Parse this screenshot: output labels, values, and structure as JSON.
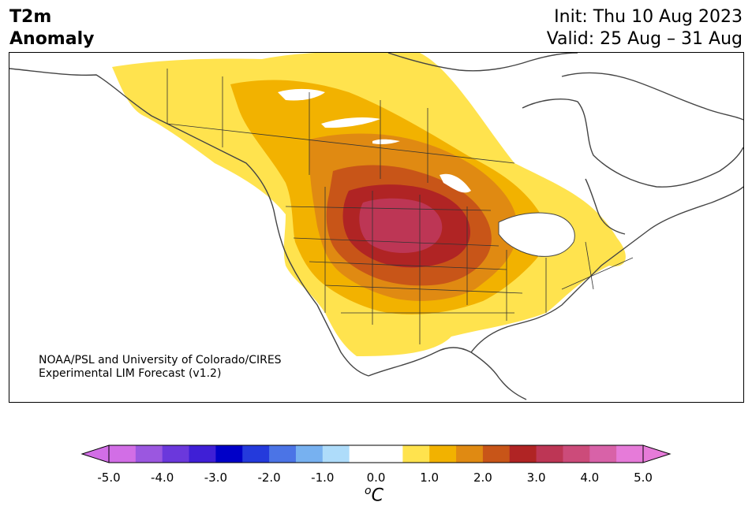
{
  "header": {
    "variable_line1": "T2m",
    "variable_line2": "Anomaly",
    "init": "Init: Thu 10 Aug 2023",
    "valid": "Valid: 25 Aug – 31 Aug"
  },
  "credit": {
    "line1": "NOAA/PSL and University of Colorado/CIRES",
    "line2": "Experimental LIM Forecast (v1.2)"
  },
  "colorbar": {
    "unit_base": "C",
    "unit_sup": "o",
    "ticks": [
      "-5.0",
      "-4.0",
      "-3.0",
      "-2.0",
      "-1.0",
      "0.0",
      "1.0",
      "2.0",
      "3.0",
      "4.0",
      "5.0"
    ],
    "colors": [
      "#d26ee6",
      "#9b57e0",
      "#6b38dc",
      "#3f1fd6",
      "#0000c8",
      "#243adc",
      "#4b74e6",
      "#77b1f0",
      "#aedcfa",
      "#ffffff",
      "#ffffff",
      "#ffe34e",
      "#f2b200",
      "#e08a12",
      "#c85518",
      "#b02424",
      "#bd3655",
      "#cc4b7a",
      "#d862a8",
      "#e67bd9"
    ],
    "under_color": "#d26ee6",
    "over_color": "#e67bd9"
  },
  "map": {
    "region": "North America",
    "features": [
      "coastlines",
      "us-state-borders",
      "canada-province-borders"
    ],
    "anomaly_levels": [
      "0.5-1.0",
      "1.0-1.5",
      "1.5-2.0",
      "2.0-2.5",
      "2.5-3.0",
      "3.0-3.5"
    ]
  }
}
